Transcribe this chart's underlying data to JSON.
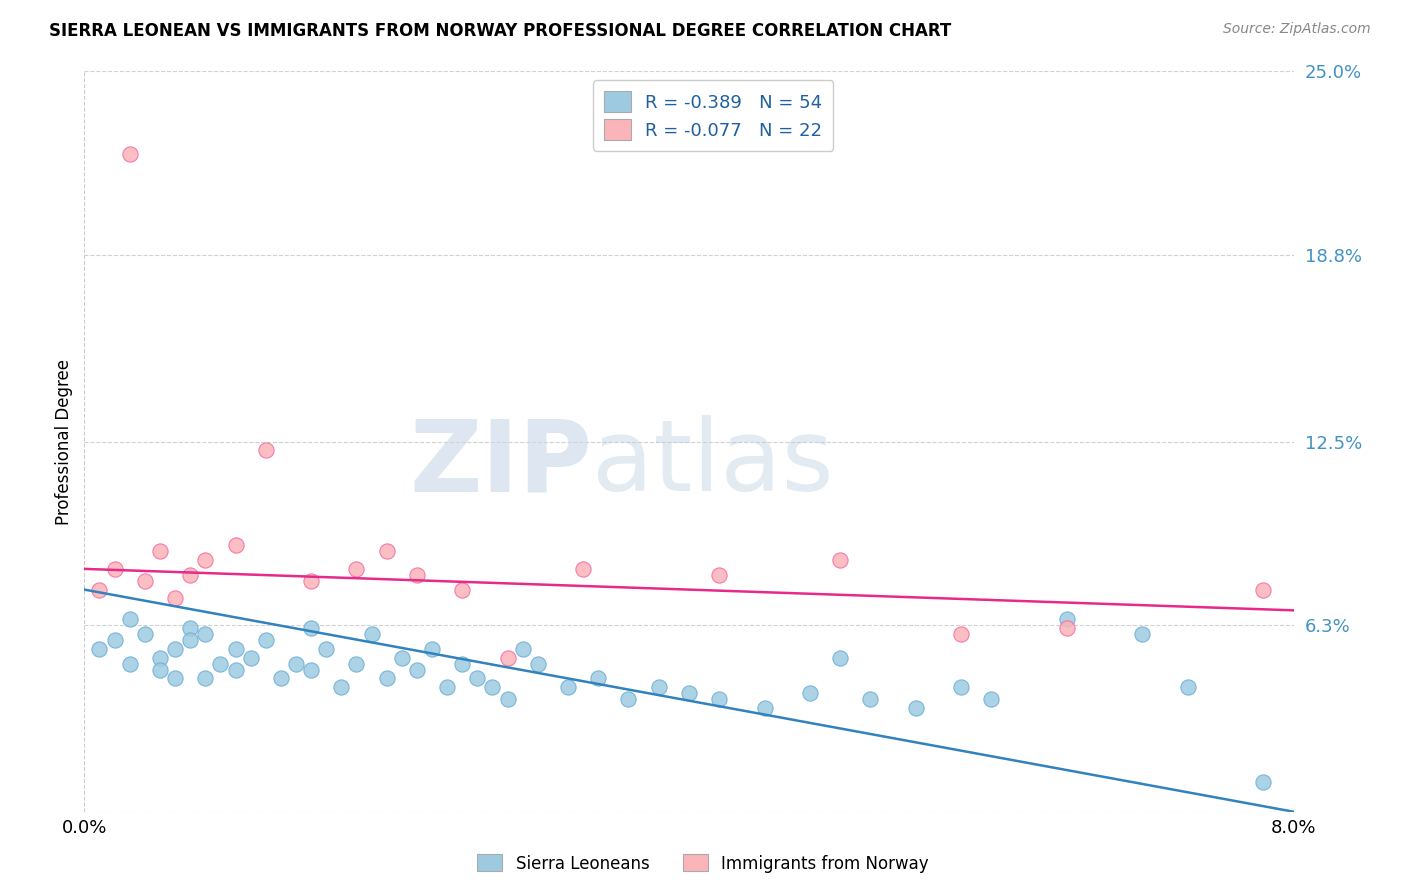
{
  "title": "SIERRA LEONEAN VS IMMIGRANTS FROM NORWAY PROFESSIONAL DEGREE CORRELATION CHART",
  "source": "Source: ZipAtlas.com",
  "ylabel": "Professional Degree",
  "x_min": 0.0,
  "x_max": 0.08,
  "y_min": 0.0,
  "y_max": 0.25,
  "y_ticks": [
    0.0,
    0.063,
    0.125,
    0.188,
    0.25
  ],
  "y_tick_labels": [
    "",
    "6.3%",
    "12.5%",
    "18.8%",
    "25.0%"
  ],
  "x_ticks": [
    0.0,
    0.08
  ],
  "x_tick_labels": [
    "0.0%",
    "8.0%"
  ],
  "legend1_label": "R = -0.389   N = 54",
  "legend2_label": "R = -0.077   N = 22",
  "blue_color": "#9ecae1",
  "blue_edge_color": "#6baed6",
  "pink_color": "#fbb4b9",
  "pink_edge_color": "#f768a1",
  "blue_line_color": "#3182bd",
  "pink_line_color": "#e7298a",
  "blue_R": -0.389,
  "pink_R": -0.077,
  "watermark_zip": "ZIP",
  "watermark_atlas": "atlas",
  "blue_scatter_x": [
    0.001,
    0.002,
    0.003,
    0.003,
    0.004,
    0.005,
    0.005,
    0.006,
    0.006,
    0.007,
    0.007,
    0.008,
    0.008,
    0.009,
    0.01,
    0.01,
    0.011,
    0.012,
    0.013,
    0.014,
    0.015,
    0.015,
    0.016,
    0.017,
    0.018,
    0.019,
    0.02,
    0.021,
    0.022,
    0.023,
    0.024,
    0.025,
    0.026,
    0.027,
    0.028,
    0.029,
    0.03,
    0.032,
    0.034,
    0.036,
    0.038,
    0.04,
    0.042,
    0.045,
    0.048,
    0.05,
    0.052,
    0.055,
    0.058,
    0.06,
    0.065,
    0.07,
    0.073,
    0.078
  ],
  "blue_scatter_y": [
    0.055,
    0.058,
    0.05,
    0.065,
    0.06,
    0.052,
    0.048,
    0.055,
    0.045,
    0.062,
    0.058,
    0.045,
    0.06,
    0.05,
    0.048,
    0.055,
    0.052,
    0.058,
    0.045,
    0.05,
    0.062,
    0.048,
    0.055,
    0.042,
    0.05,
    0.06,
    0.045,
    0.052,
    0.048,
    0.055,
    0.042,
    0.05,
    0.045,
    0.042,
    0.038,
    0.055,
    0.05,
    0.042,
    0.045,
    0.038,
    0.042,
    0.04,
    0.038,
    0.035,
    0.04,
    0.052,
    0.038,
    0.035,
    0.042,
    0.038,
    0.065,
    0.06,
    0.042,
    0.01
  ],
  "pink_scatter_x": [
    0.001,
    0.002,
    0.003,
    0.004,
    0.005,
    0.006,
    0.007,
    0.008,
    0.01,
    0.012,
    0.015,
    0.018,
    0.02,
    0.022,
    0.025,
    0.028,
    0.033,
    0.042,
    0.05,
    0.058,
    0.065,
    0.078
  ],
  "pink_scatter_y": [
    0.075,
    0.082,
    0.222,
    0.078,
    0.088,
    0.072,
    0.08,
    0.085,
    0.09,
    0.122,
    0.078,
    0.082,
    0.088,
    0.08,
    0.075,
    0.052,
    0.082,
    0.08,
    0.085,
    0.06,
    0.062,
    0.075
  ],
  "blue_trend_x": [
    0.0,
    0.08
  ],
  "blue_trend_y": [
    0.075,
    0.0
  ],
  "pink_trend_x": [
    0.0,
    0.08
  ],
  "pink_trend_y": [
    0.082,
    0.068
  ]
}
